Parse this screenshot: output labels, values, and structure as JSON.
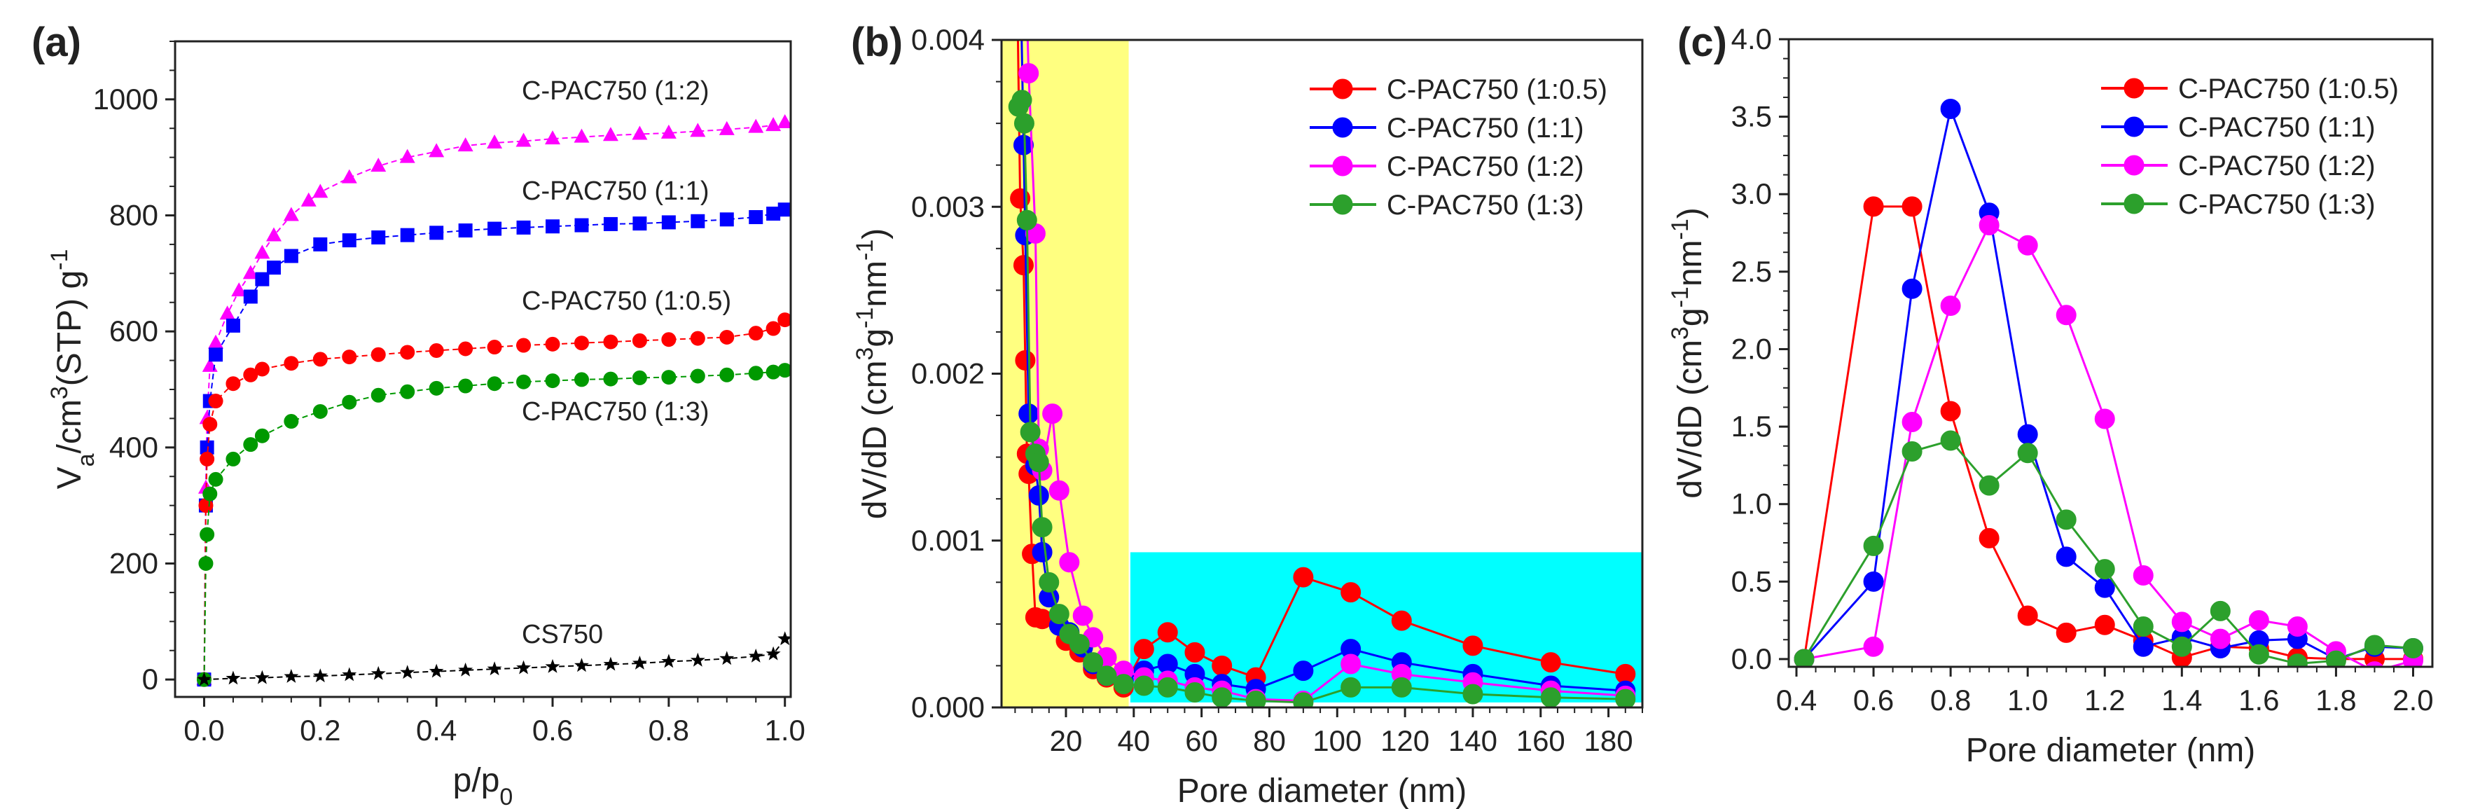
{
  "chart_data": [
    {
      "panel_label": "(a)",
      "type": "scatter",
      "xlabel_parts": [
        {
          "t": "p/p"
        },
        {
          "t": "0",
          "sub": true
        }
      ],
      "ylabel_parts": [
        {
          "t": "V"
        },
        {
          "t": "a",
          "sub": true
        },
        {
          "t": "/cm"
        },
        {
          "t": "3",
          "sup": true
        },
        {
          "t": "(STP) g"
        },
        {
          "t": "-1",
          "sup": true
        }
      ],
      "xlim": [
        -0.05,
        1.01
      ],
      "ylim": [
        -30,
        1100
      ],
      "xticks": [
        0.0,
        0.2,
        0.4,
        0.6,
        0.8,
        1.0
      ],
      "yticks": [
        0,
        200,
        400,
        600,
        800,
        1000
      ],
      "xtick_decimals": 1,
      "ytick_decimals": 0,
      "series": [
        {
          "name": "C-PAC750 (1:2)",
          "color": "#ff00ff",
          "marker": "triangle",
          "x": [
            0,
            0.003,
            0.005,
            0.01,
            0.02,
            0.04,
            0.06,
            0.08,
            0.1,
            0.12,
            0.15,
            0.18,
            0.2,
            0.25,
            0.3,
            0.35,
            0.4,
            0.45,
            0.5,
            0.55,
            0.6,
            0.65,
            0.7,
            0.75,
            0.8,
            0.85,
            0.9,
            0.95,
            0.98,
            1.0
          ],
          "y": [
            0,
            330,
            450,
            540,
            580,
            630,
            670,
            700,
            735,
            765,
            800,
            825,
            840,
            865,
            885,
            900,
            910,
            920,
            925,
            928,
            932,
            935,
            938,
            940,
            942,
            945,
            948,
            952,
            955,
            960
          ]
        },
        {
          "name": "C-PAC750 (1:1)",
          "color": "#0000ff",
          "marker": "square",
          "x": [
            0,
            0.003,
            0.005,
            0.01,
            0.02,
            0.05,
            0.08,
            0.1,
            0.12,
            0.15,
            0.2,
            0.25,
            0.3,
            0.35,
            0.4,
            0.45,
            0.5,
            0.55,
            0.6,
            0.65,
            0.7,
            0.75,
            0.8,
            0.85,
            0.9,
            0.95,
            0.98,
            1.0
          ],
          "y": [
            0,
            300,
            400,
            480,
            560,
            610,
            660,
            690,
            710,
            730,
            750,
            757,
            762,
            766,
            770,
            774,
            777,
            779,
            781,
            783,
            785,
            786,
            788,
            790,
            793,
            797,
            803,
            810
          ]
        },
        {
          "name": "C-PAC750 (1:0.5)",
          "color": "#ff0000",
          "marker": "circle",
          "x": [
            0,
            0.003,
            0.005,
            0.01,
            0.02,
            0.05,
            0.08,
            0.1,
            0.15,
            0.2,
            0.25,
            0.3,
            0.35,
            0.4,
            0.45,
            0.5,
            0.55,
            0.6,
            0.65,
            0.7,
            0.75,
            0.8,
            0.85,
            0.9,
            0.95,
            0.98,
            1.0
          ],
          "y": [
            0,
            300,
            380,
            440,
            480,
            510,
            525,
            535,
            545,
            552,
            556,
            560,
            564,
            567,
            570,
            573,
            576,
            578,
            580,
            582,
            584,
            586,
            588,
            590,
            597,
            605,
            620
          ]
        },
        {
          "name": "C-PAC750 (1:3)",
          "color": "#009900",
          "marker": "pentagon",
          "x": [
            0,
            0.003,
            0.005,
            0.01,
            0.02,
            0.05,
            0.08,
            0.1,
            0.15,
            0.2,
            0.25,
            0.3,
            0.35,
            0.4,
            0.45,
            0.5,
            0.55,
            0.6,
            0.65,
            0.7,
            0.75,
            0.8,
            0.85,
            0.9,
            0.95,
            0.98,
            1.0
          ],
          "y": [
            0,
            200,
            250,
            320,
            345,
            380,
            405,
            420,
            445,
            462,
            478,
            490,
            496,
            502,
            506,
            510,
            513,
            515,
            517,
            518,
            520,
            521,
            523,
            525,
            528,
            530,
            533
          ]
        },
        {
          "name": "CS750",
          "color": "#000000",
          "marker": "star",
          "x": [
            0,
            0.05,
            0.1,
            0.15,
            0.2,
            0.25,
            0.3,
            0.35,
            0.4,
            0.45,
            0.5,
            0.55,
            0.6,
            0.65,
            0.7,
            0.75,
            0.8,
            0.85,
            0.9,
            0.95,
            0.98,
            1.0
          ],
          "y": [
            0,
            2,
            3,
            5,
            6,
            8,
            10,
            12,
            14,
            16,
            18,
            20,
            22,
            24,
            26,
            28,
            31,
            33,
            36,
            40,
            44,
            70
          ]
        }
      ],
      "annotations": [
        "C-PAC750 (1:2)",
        "C-PAC750 (1:1)",
        "C-PAC750 (1:0.5)",
        "C-PAC750 (1:3)",
        "CS750"
      ]
    },
    {
      "panel_label": "(b)",
      "type": "line",
      "xlabel_parts": [
        {
          "t": "Pore diameter (nm)"
        }
      ],
      "ylabel_parts": [
        {
          "t": "dV/dD (cm"
        },
        {
          "t": "3",
          "sup": true
        },
        {
          "t": "g"
        },
        {
          "t": "-1",
          "sup": true
        },
        {
          "t": "nm"
        },
        {
          "t": "-1",
          "sup": true
        },
        {
          "t": ")"
        }
      ],
      "xlim": [
        1,
        190
      ],
      "ylim": [
        0,
        0.004
      ],
      "xticks": [
        20,
        40,
        60,
        80,
        100,
        120,
        140,
        160,
        180
      ],
      "yticks": [
        0,
        0.001,
        0.002,
        0.003,
        0.004
      ],
      "xtick_decimals": 0,
      "ytick_decimals": 3,
      "regions": [
        {
          "name": "micropore-mesopore-region",
          "color": "#ffff80",
          "x": [
            1,
            38.5
          ],
          "y": [
            0,
            0.004
          ]
        },
        {
          "name": "macropore-region",
          "color": "#00ffff",
          "x": [
            39,
            190
          ],
          "y": [
            3e-05,
            0.00093
          ]
        }
      ],
      "legend": "top-right",
      "series": [
        {
          "name": "C-PAC750 (1:0.5)",
          "color": "#ff0000",
          "marker": "circle",
          "x": [
            5.5,
            6.5,
            7.5,
            8,
            8.5,
            9,
            10,
            11,
            13,
            20,
            24,
            28,
            32,
            37,
            43,
            50,
            58,
            66,
            76,
            90,
            104,
            119,
            140,
            163,
            185
          ],
          "y": [
            0.0045,
            0.00305,
            0.00265,
            0.00208,
            0.00152,
            0.0014,
            0.00092,
            0.00054,
            0.00053,
            0.0004,
            0.00033,
            0.00023,
            0.00018,
            0.00012,
            0.00035,
            0.00045,
            0.00033,
            0.00025,
            0.00018,
            0.00078,
            0.00069,
            0.00052,
            0.00037,
            0.00027,
            0.0002
          ]
        },
        {
          "name": "C-PAC750 (1:1)",
          "color": "#0000ff",
          "marker": "circle",
          "x": [
            6.5,
            7.5,
            8,
            9,
            11,
            12,
            13,
            15,
            18,
            21,
            25,
            28,
            32,
            37,
            43,
            50,
            58,
            66,
            76,
            90,
            104,
            119,
            140,
            163,
            185
          ],
          "y": [
            0.0045,
            0.00337,
            0.00283,
            0.00176,
            0.00145,
            0.00127,
            0.00093,
            0.00066,
            0.00049,
            0.00045,
            0.00036,
            0.00026,
            0.00019,
            0.00016,
            0.00022,
            0.00026,
            0.0002,
            0.00014,
            0.00011,
            0.00022,
            0.00035,
            0.00027,
            0.0002,
            0.00013,
            0.0001
          ]
        },
        {
          "name": "C-PAC750 (1:2)",
          "color": "#ff00ff",
          "marker": "circle",
          "x": [
            8,
            9,
            11,
            12,
            13,
            16,
            18,
            21,
            25,
            28,
            32,
            37,
            43,
            50,
            58,
            66,
            76,
            90,
            104,
            119,
            140,
            163,
            185
          ],
          "y": [
            0.0045,
            0.0038,
            0.00284,
            0.00155,
            0.00142,
            0.00176,
            0.0013,
            0.00087,
            0.00055,
            0.00042,
            0.0003,
            0.00022,
            0.00018,
            0.00016,
            0.00012,
            0.0001,
            5e-05,
            4e-05,
            0.00026,
            0.0002,
            0.00015,
            0.0001,
            7e-05
          ]
        },
        {
          "name": "C-PAC750 (1:3)",
          "color": "#2ca02c",
          "marker": "circle",
          "x": [
            6,
            7,
            7.7,
            8.5,
            9.5,
            11,
            12,
            13,
            15,
            18,
            21,
            24,
            28,
            32,
            37,
            43,
            50,
            58,
            66,
            76,
            90,
            104,
            119,
            140,
            163,
            185
          ],
          "y": [
            0.0036,
            0.00364,
            0.0035,
            0.00292,
            0.00165,
            0.00152,
            0.00147,
            0.00108,
            0.00075,
            0.00056,
            0.00044,
            0.00038,
            0.00027,
            0.00019,
            0.00014,
            0.00013,
            0.00012,
            9e-05,
            6e-05,
            4e-05,
            3e-05,
            0.00012,
            0.00012,
            8e-05,
            6e-05,
            5e-05
          ]
        }
      ]
    },
    {
      "panel_label": "(c)",
      "type": "line",
      "xlabel_parts": [
        {
          "t": "Pore diameter (nm)"
        }
      ],
      "ylabel_parts": [
        {
          "t": "dV/dD (cm"
        },
        {
          "t": "3",
          "sup": true
        },
        {
          "t": "g"
        },
        {
          "t": "-1",
          "sup": true
        },
        {
          "t": "nm"
        },
        {
          "t": "-1",
          "sup": true
        },
        {
          "t": ")"
        }
      ],
      "xlim": [
        0.38,
        2.05
      ],
      "ylim": [
        -0.05,
        4.0
      ],
      "xticks": [
        0.4,
        0.6,
        0.8,
        1.0,
        1.2,
        1.4,
        1.6,
        1.8,
        2.0
      ],
      "yticks": [
        0,
        0.5,
        1.0,
        1.5,
        2.0,
        2.5,
        3.0,
        3.5,
        4.0
      ],
      "xtick_decimals": 1,
      "ytick_decimals": 1,
      "legend": "top-right",
      "series": [
        {
          "name": "C-PAC750 (1:0.5)",
          "color": "#ff0000",
          "marker": "circle",
          "x": [
            0.42,
            0.6,
            0.7,
            0.8,
            0.9,
            1.0,
            1.1,
            1.2,
            1.3,
            1.4,
            1.5,
            1.6,
            1.7,
            1.8,
            1.9,
            2.0
          ],
          "y": [
            0,
            2.92,
            2.92,
            1.6,
            0.78,
            0.28,
            0.17,
            0.22,
            0.12,
            0.01,
            0.08,
            0.07,
            0.01,
            0.0,
            0.0,
            0.0
          ]
        },
        {
          "name": "C-PAC750 (1:1)",
          "color": "#0000ff",
          "marker": "circle",
          "x": [
            0.42,
            0.6,
            0.7,
            0.8,
            0.9,
            1.0,
            1.1,
            1.2,
            1.3,
            1.4,
            1.5,
            1.6,
            1.7,
            1.8,
            1.9,
            2.0
          ],
          "y": [
            0,
            0.5,
            2.39,
            3.55,
            2.88,
            1.45,
            0.66,
            0.46,
            0.08,
            0.14,
            0.07,
            0.12,
            0.13,
            0.0,
            0.08,
            0.07
          ]
        },
        {
          "name": "C-PAC750 (1:2)",
          "color": "#ff00ff",
          "marker": "circle",
          "x": [
            0.42,
            0.6,
            0.7,
            0.8,
            0.9,
            1.0,
            1.1,
            1.2,
            1.3,
            1.4,
            1.5,
            1.6,
            1.7,
            1.8,
            1.9,
            2.0
          ],
          "y": [
            0,
            0.08,
            1.53,
            2.28,
            2.8,
            2.67,
            2.22,
            1.55,
            0.54,
            0.24,
            0.13,
            0.25,
            0.21,
            0.05,
            -0.08,
            -0.01
          ]
        },
        {
          "name": "C-PAC750 (1:3)",
          "color": "#2ca02c",
          "marker": "circle",
          "x": [
            0.42,
            0.6,
            0.7,
            0.8,
            0.9,
            1.0,
            1.1,
            1.2,
            1.3,
            1.4,
            1.5,
            1.6,
            1.7,
            1.8,
            1.9,
            2.0
          ],
          "y": [
            0,
            0.73,
            1.34,
            1.41,
            1.12,
            1.33,
            0.9,
            0.58,
            0.21,
            0.08,
            0.31,
            0.03,
            -0.03,
            -0.01,
            0.09,
            0.07
          ]
        }
      ]
    }
  ]
}
